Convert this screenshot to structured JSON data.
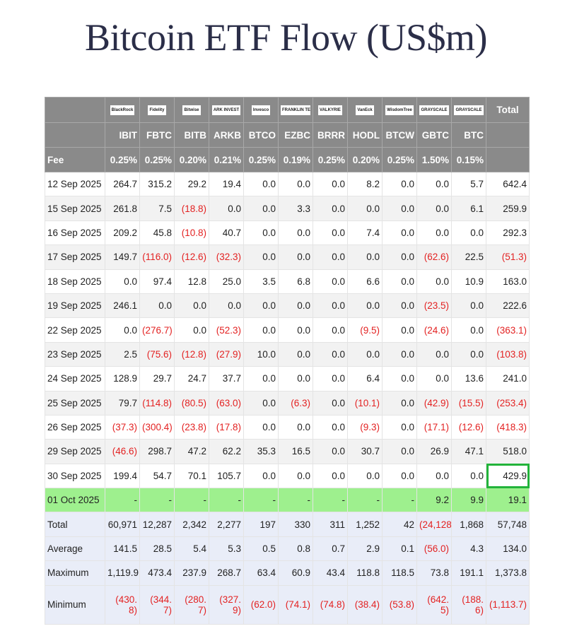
{
  "title": "Bitcoin ETF Flow (US$m)",
  "table": {
    "issuers": [
      "BlackRock",
      "Fidelity",
      "Bitwise",
      "ARK INVEST",
      "Invesco",
      "FRANKLIN TEMPLETON",
      "VALKYRIE",
      "VanEck",
      "WisdomTree",
      "GRAYSCALE",
      "GRAYSCALE"
    ],
    "total_header": "Total",
    "tickers": [
      "IBIT",
      "FBTC",
      "BITB",
      "ARKB",
      "BTCO",
      "EZBC",
      "BRRR",
      "HODL",
      "BTCW",
      "GBTC",
      "BTC"
    ],
    "fee_label": "Fee",
    "fees": [
      "0.25%",
      "0.25%",
      "0.20%",
      "0.21%",
      "0.25%",
      "0.19%",
      "0.25%",
      "0.20%",
      "0.25%",
      "1.50%",
      "0.15%"
    ],
    "rows": [
      {
        "date": "12 Sep 2025",
        "values": [
          "264.7",
          "315.2",
          "29.2",
          "19.4",
          "0.0",
          "0.0",
          "0.0",
          "8.2",
          "0.0",
          "0.0",
          "5.7",
          "642.4"
        ]
      },
      {
        "date": "15 Sep 2025",
        "values": [
          "261.8",
          "7.5",
          "(18.8)",
          "0.0",
          "0.0",
          "3.3",
          "0.0",
          "0.0",
          "0.0",
          "0.0",
          "6.1",
          "259.9"
        ]
      },
      {
        "date": "16 Sep 2025",
        "values": [
          "209.2",
          "45.8",
          "(10.8)",
          "40.7",
          "0.0",
          "0.0",
          "0.0",
          "7.4",
          "0.0",
          "0.0",
          "0.0",
          "292.3"
        ]
      },
      {
        "date": "17 Sep 2025",
        "values": [
          "149.7",
          "(116.0)",
          "(12.6)",
          "(32.3)",
          "0.0",
          "0.0",
          "0.0",
          "0.0",
          "0.0",
          "(62.6)",
          "22.5",
          "(51.3)"
        ]
      },
      {
        "date": "18 Sep 2025",
        "values": [
          "0.0",
          "97.4",
          "12.8",
          "25.0",
          "3.5",
          "6.8",
          "0.0",
          "6.6",
          "0.0",
          "0.0",
          "10.9",
          "163.0"
        ]
      },
      {
        "date": "19 Sep 2025",
        "values": [
          "246.1",
          "0.0",
          "0.0",
          "0.0",
          "0.0",
          "0.0",
          "0.0",
          "0.0",
          "0.0",
          "(23.5)",
          "0.0",
          "222.6"
        ]
      },
      {
        "date": "22 Sep 2025",
        "values": [
          "0.0",
          "(276.7)",
          "0.0",
          "(52.3)",
          "0.0",
          "0.0",
          "0.0",
          "(9.5)",
          "0.0",
          "(24.6)",
          "0.0",
          "(363.1)"
        ]
      },
      {
        "date": "23 Sep 2025",
        "values": [
          "2.5",
          "(75.6)",
          "(12.8)",
          "(27.9)",
          "10.0",
          "0.0",
          "0.0",
          "0.0",
          "0.0",
          "0.0",
          "0.0",
          "(103.8)"
        ]
      },
      {
        "date": "24 Sep 2025",
        "values": [
          "128.9",
          "29.7",
          "24.7",
          "37.7",
          "0.0",
          "0.0",
          "0.0",
          "6.4",
          "0.0",
          "0.0",
          "13.6",
          "241.0"
        ]
      },
      {
        "date": "25 Sep 2025",
        "values": [
          "79.7",
          "(114.8)",
          "(80.5)",
          "(63.0)",
          "0.0",
          "(6.3)",
          "0.0",
          "(10.1)",
          "0.0",
          "(42.9)",
          "(15.5)",
          "(253.4)"
        ]
      },
      {
        "date": "26 Sep 2025",
        "values": [
          "(37.3)",
          "(300.4)",
          "(23.8)",
          "(17.8)",
          "0.0",
          "0.0",
          "0.0",
          "(9.3)",
          "0.0",
          "(17.1)",
          "(12.6)",
          "(418.3)"
        ]
      },
      {
        "date": "29 Sep 2025",
        "values": [
          "(46.6)",
          "298.7",
          "47.2",
          "62.2",
          "35.3",
          "16.5",
          "0.0",
          "30.7",
          "0.0",
          "26.9",
          "47.1",
          "518.0"
        ]
      },
      {
        "date": "30 Sep 2025",
        "values": [
          "199.4",
          "54.7",
          "70.1",
          "105.7",
          "0.0",
          "0.0",
          "0.0",
          "0.0",
          "0.0",
          "0.0",
          "0.0",
          "429.9"
        ]
      },
      {
        "date": "01 Oct 2025",
        "values": [
          "-",
          "-",
          "-",
          "-",
          "-",
          "-",
          "-",
          "-",
          "-",
          "9.2",
          "9.9",
          "19.1"
        ]
      }
    ],
    "summary": [
      {
        "label": "Total",
        "values": [
          "60,971",
          "12,287",
          "2,342",
          "2,277",
          "197",
          "330",
          "311",
          "1,252",
          "42",
          "(24,128)",
          "1,868",
          "57,748"
        ]
      },
      {
        "label": "Average",
        "values": [
          "141.5",
          "28.5",
          "5.4",
          "5.3",
          "0.5",
          "0.8",
          "0.7",
          "2.9",
          "0.1",
          "(56.0)",
          "4.3",
          "134.0"
        ]
      },
      {
        "label": "Maximum",
        "values": [
          "1,119.9",
          "473.4",
          "237.9",
          "268.7",
          "63.4",
          "60.9",
          "43.4",
          "118.8",
          "118.5",
          "73.8",
          "191.1",
          "1,373.8"
        ]
      },
      {
        "label": "Minimum",
        "values": [
          "(430.8)",
          "(344.7)",
          "(280.7)",
          "(327.9)",
          "(62.0)",
          "(74.1)",
          "(74.8)",
          "(38.4)",
          "(53.8)",
          "(642.5)",
          "(188.6)",
          "(1,113.7)"
        ]
      }
    ]
  }
}
